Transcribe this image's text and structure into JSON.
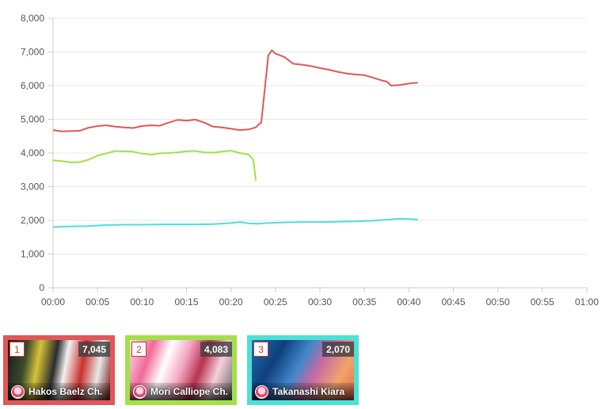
{
  "chart_data": {
    "type": "line",
    "title": "",
    "xlabel": "",
    "ylabel": "",
    "x_ticks": [
      "00:00",
      "00:05",
      "00:10",
      "00:15",
      "00:20",
      "00:25",
      "00:30",
      "00:35",
      "00:40",
      "00:45",
      "00:50",
      "00:55",
      "01:00"
    ],
    "y_ticks": [
      "0",
      "1,000",
      "2,000",
      "3,000",
      "4,000",
      "5,000",
      "6,000",
      "7,000",
      "8,000"
    ],
    "xlim": [
      0,
      60
    ],
    "ylim": [
      0,
      8000
    ],
    "grid": true,
    "legend": "none",
    "series": [
      {
        "color": "#e15759",
        "x": [
          0,
          1,
          2,
          3,
          4,
          5,
          6,
          7,
          8,
          9,
          10,
          11,
          12,
          13,
          14,
          15,
          16,
          17,
          18,
          19,
          20,
          21,
          22,
          22.8,
          23,
          23.4,
          23.8,
          24.2,
          24.6,
          25,
          26,
          27,
          28,
          29,
          30,
          31,
          32,
          33,
          34,
          35,
          36,
          37,
          37.5,
          38,
          39,
          40,
          41
        ],
        "y": [
          4680,
          4640,
          4650,
          4660,
          4750,
          4800,
          4820,
          4780,
          4760,
          4740,
          4800,
          4820,
          4810,
          4900,
          4980,
          4960,
          4990,
          4900,
          4780,
          4760,
          4720,
          4680,
          4700,
          4760,
          4820,
          4900,
          5900,
          6900,
          7050,
          6950,
          6850,
          6650,
          6620,
          6580,
          6520,
          6470,
          6410,
          6360,
          6330,
          6310,
          6230,
          6150,
          6120,
          6000,
          6020,
          6060,
          6090
        ]
      },
      {
        "color": "#a3e048",
        "x": [
          0,
          1,
          2,
          3,
          4,
          5,
          6,
          7,
          8,
          9,
          10,
          11,
          12,
          13,
          14,
          15,
          16,
          17,
          18,
          19,
          20,
          21,
          22,
          22.5,
          22.8
        ],
        "y": [
          3780,
          3760,
          3720,
          3730,
          3800,
          3920,
          3990,
          4060,
          4050,
          4040,
          3980,
          3950,
          3990,
          4000,
          4020,
          4050,
          4060,
          4020,
          4010,
          4040,
          4070,
          4000,
          3950,
          3800,
          3180
        ]
      },
      {
        "color": "#4de0d7",
        "x": [
          0,
          2,
          4,
          6,
          8,
          10,
          12,
          14,
          16,
          18,
          20,
          21,
          22,
          23,
          24,
          26,
          28,
          30,
          32,
          34,
          36,
          38,
          39,
          40,
          41
        ],
        "y": [
          1800,
          1820,
          1830,
          1860,
          1870,
          1870,
          1880,
          1880,
          1880,
          1890,
          1920,
          1950,
          1910,
          1900,
          1920,
          1940,
          1950,
          1950,
          1960,
          1970,
          1990,
          2030,
          2050,
          2040,
          2020
        ]
      }
    ]
  },
  "ranking": [
    {
      "rank": "1",
      "count": "7,045",
      "name": "Hakos Baelz Ch.",
      "color": "#e15759"
    },
    {
      "rank": "2",
      "count": "4,083",
      "name": "Mori Calliope Ch.",
      "color": "#a3e048"
    },
    {
      "rank": "3",
      "count": "2,070",
      "name": "Takanashi Kiara",
      "color": "#4de0d7"
    }
  ]
}
